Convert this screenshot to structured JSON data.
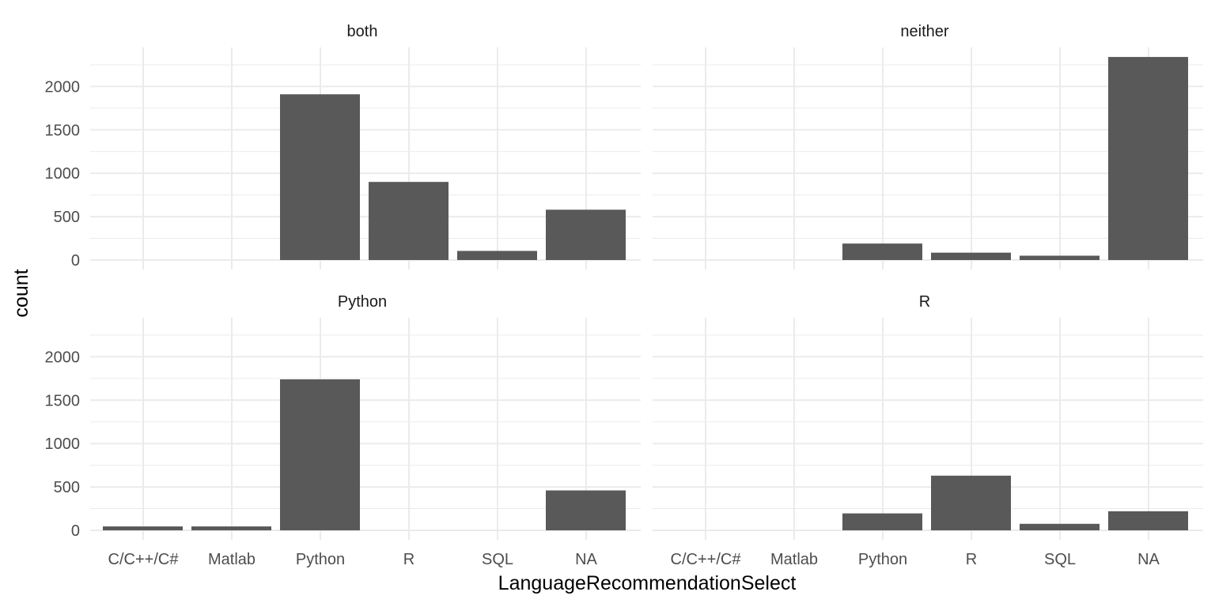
{
  "chart_data": {
    "type": "bar",
    "xlabel": "LanguageRecommendationSelect",
    "ylabel": "count",
    "categories": [
      "C/C++/C#",
      "Matlab",
      "Python",
      "R",
      "SQL",
      "NA"
    ],
    "ylim": [
      0,
      2450
    ],
    "yticks": [
      "0",
      "500",
      "1000",
      "1500",
      "2000"
    ],
    "ytick_values": [
      0,
      500,
      1000,
      1500,
      2000
    ],
    "grid": true,
    "bar_color": "#595959",
    "grid_color": "#ebebeb",
    "panels": [
      {
        "strip": "both",
        "values": [
          0,
          0,
          1910,
          900,
          105,
          580
        ]
      },
      {
        "strip": "neither",
        "values": [
          0,
          0,
          190,
          85,
          50,
          2340
        ]
      },
      {
        "strip": "Python",
        "values": [
          45,
          45,
          1740,
          0,
          0,
          460
        ]
      },
      {
        "strip": "R",
        "values": [
          0,
          0,
          195,
          630,
          75,
          220
        ]
      }
    ]
  }
}
